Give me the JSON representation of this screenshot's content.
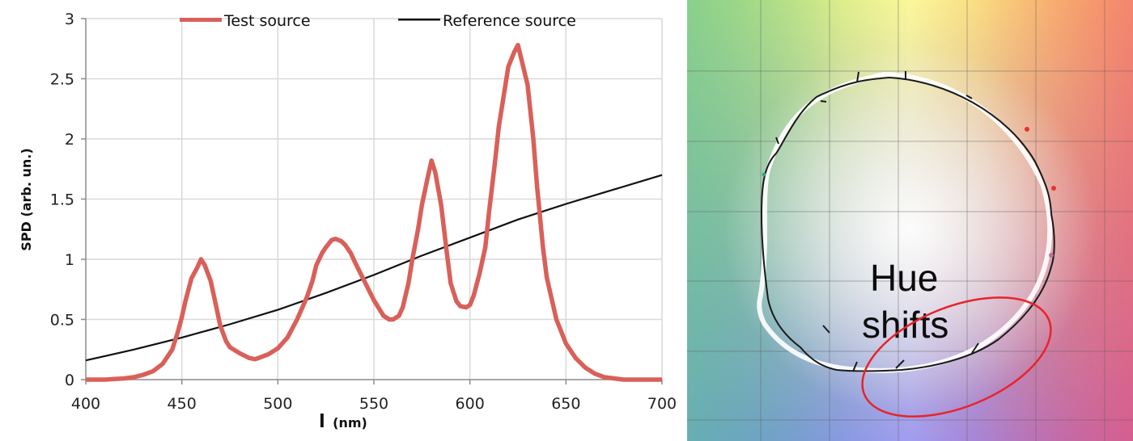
{
  "chart_data": [
    {
      "type": "line",
      "title": "",
      "xlabel": "l (nm)",
      "ylabel": "SPD (arb. un.)",
      "xlim": [
        400,
        700
      ],
      "ylim": [
        0,
        3
      ],
      "x_ticks": [
        400,
        450,
        500,
        550,
        600,
        650,
        700
      ],
      "y_ticks": [
        0,
        0.5,
        1,
        1.5,
        2,
        2.5,
        3
      ],
      "y_tick_labels": [
        "0",
        "0.5",
        "1",
        "1.5",
        "2",
        "2.5",
        "3"
      ],
      "grid": true,
      "legend_position": "top",
      "series": [
        {
          "name": "Test source",
          "color": "#d9605a",
          "x": [
            400,
            410,
            420,
            425,
            430,
            435,
            440,
            445,
            448,
            450,
            452,
            455,
            458,
            460,
            462,
            465,
            468,
            470,
            473,
            475,
            480,
            485,
            488,
            490,
            495,
            500,
            505,
            510,
            515,
            518,
            520,
            523,
            525,
            528,
            530,
            533,
            535,
            538,
            540,
            545,
            550,
            555,
            558,
            560,
            563,
            565,
            568,
            570,
            573,
            575,
            578,
            580,
            582,
            585,
            588,
            590,
            593,
            595,
            598,
            600,
            602,
            605,
            608,
            610,
            613,
            615,
            618,
            620,
            623,
            625,
            627,
            630,
            633,
            635,
            638,
            640,
            645,
            650,
            655,
            660,
            665,
            670,
            675,
            680,
            690,
            700
          ],
          "values": [
            0,
            0,
            0.01,
            0.02,
            0.04,
            0.07,
            0.13,
            0.25,
            0.4,
            0.52,
            0.66,
            0.84,
            0.93,
            1.0,
            0.95,
            0.82,
            0.6,
            0.45,
            0.32,
            0.27,
            0.22,
            0.18,
            0.17,
            0.18,
            0.21,
            0.26,
            0.35,
            0.5,
            0.68,
            0.82,
            0.95,
            1.05,
            1.1,
            1.16,
            1.17,
            1.15,
            1.12,
            1.05,
            0.98,
            0.82,
            0.66,
            0.53,
            0.5,
            0.5,
            0.53,
            0.6,
            0.8,
            1.0,
            1.25,
            1.45,
            1.68,
            1.82,
            1.72,
            1.45,
            1.05,
            0.8,
            0.65,
            0.61,
            0.6,
            0.62,
            0.7,
            0.88,
            1.1,
            1.4,
            1.8,
            2.1,
            2.4,
            2.6,
            2.72,
            2.78,
            2.65,
            2.45,
            2.0,
            1.6,
            1.1,
            0.85,
            0.5,
            0.3,
            0.18,
            0.1,
            0.05,
            0.02,
            0.01,
            0,
            0,
            0
          ]
        },
        {
          "name": "Reference source",
          "color": "#111111",
          "x": [
            400,
            425,
            450,
            475,
            500,
            525,
            550,
            575,
            600,
            625,
            650,
            675,
            700
          ],
          "values": [
            0.16,
            0.25,
            0.35,
            0.46,
            0.58,
            0.72,
            0.87,
            1.03,
            1.18,
            1.33,
            1.46,
            1.58,
            1.7
          ]
        }
      ]
    },
    {
      "type": "diagram",
      "title": "",
      "annotation": "Hue shifts",
      "grid": true,
      "background": "color vector graphic (hue gradient)",
      "highlight": {
        "shape": "ellipse",
        "color": "#e8232a"
      }
    }
  ],
  "left_chart": {
    "legend": [
      {
        "label": "Test source",
        "color": "#d9605a"
      },
      {
        "label": "Reference source",
        "color": "#111111"
      }
    ],
    "x_axis_symbol": "l",
    "x_axis_unit": "(nm)",
    "y_axis_title": "SPD (arb. un.)",
    "x_ticks": [
      "400",
      "450",
      "500",
      "550",
      "600",
      "650",
      "700"
    ],
    "y_ticks": [
      "0",
      "0.5",
      "1",
      "1.5",
      "2",
      "2.5",
      "3"
    ]
  },
  "right_panel": {
    "annotation_line1": "Hue",
    "annotation_line2": "shifts",
    "ellipse_color": "#e8232a",
    "colors": {
      "top_left": "#9bd86a",
      "top_center": "#fbf79a",
      "top_right": "#f8a04a",
      "mid_left": "#93d49e",
      "center": "#ffffff",
      "mid_right": "#f39a8e",
      "bottom_left": "#4f8fc0",
      "bottom_center": "#a29ef0",
      "bottom_right": "#b44a9a"
    }
  }
}
